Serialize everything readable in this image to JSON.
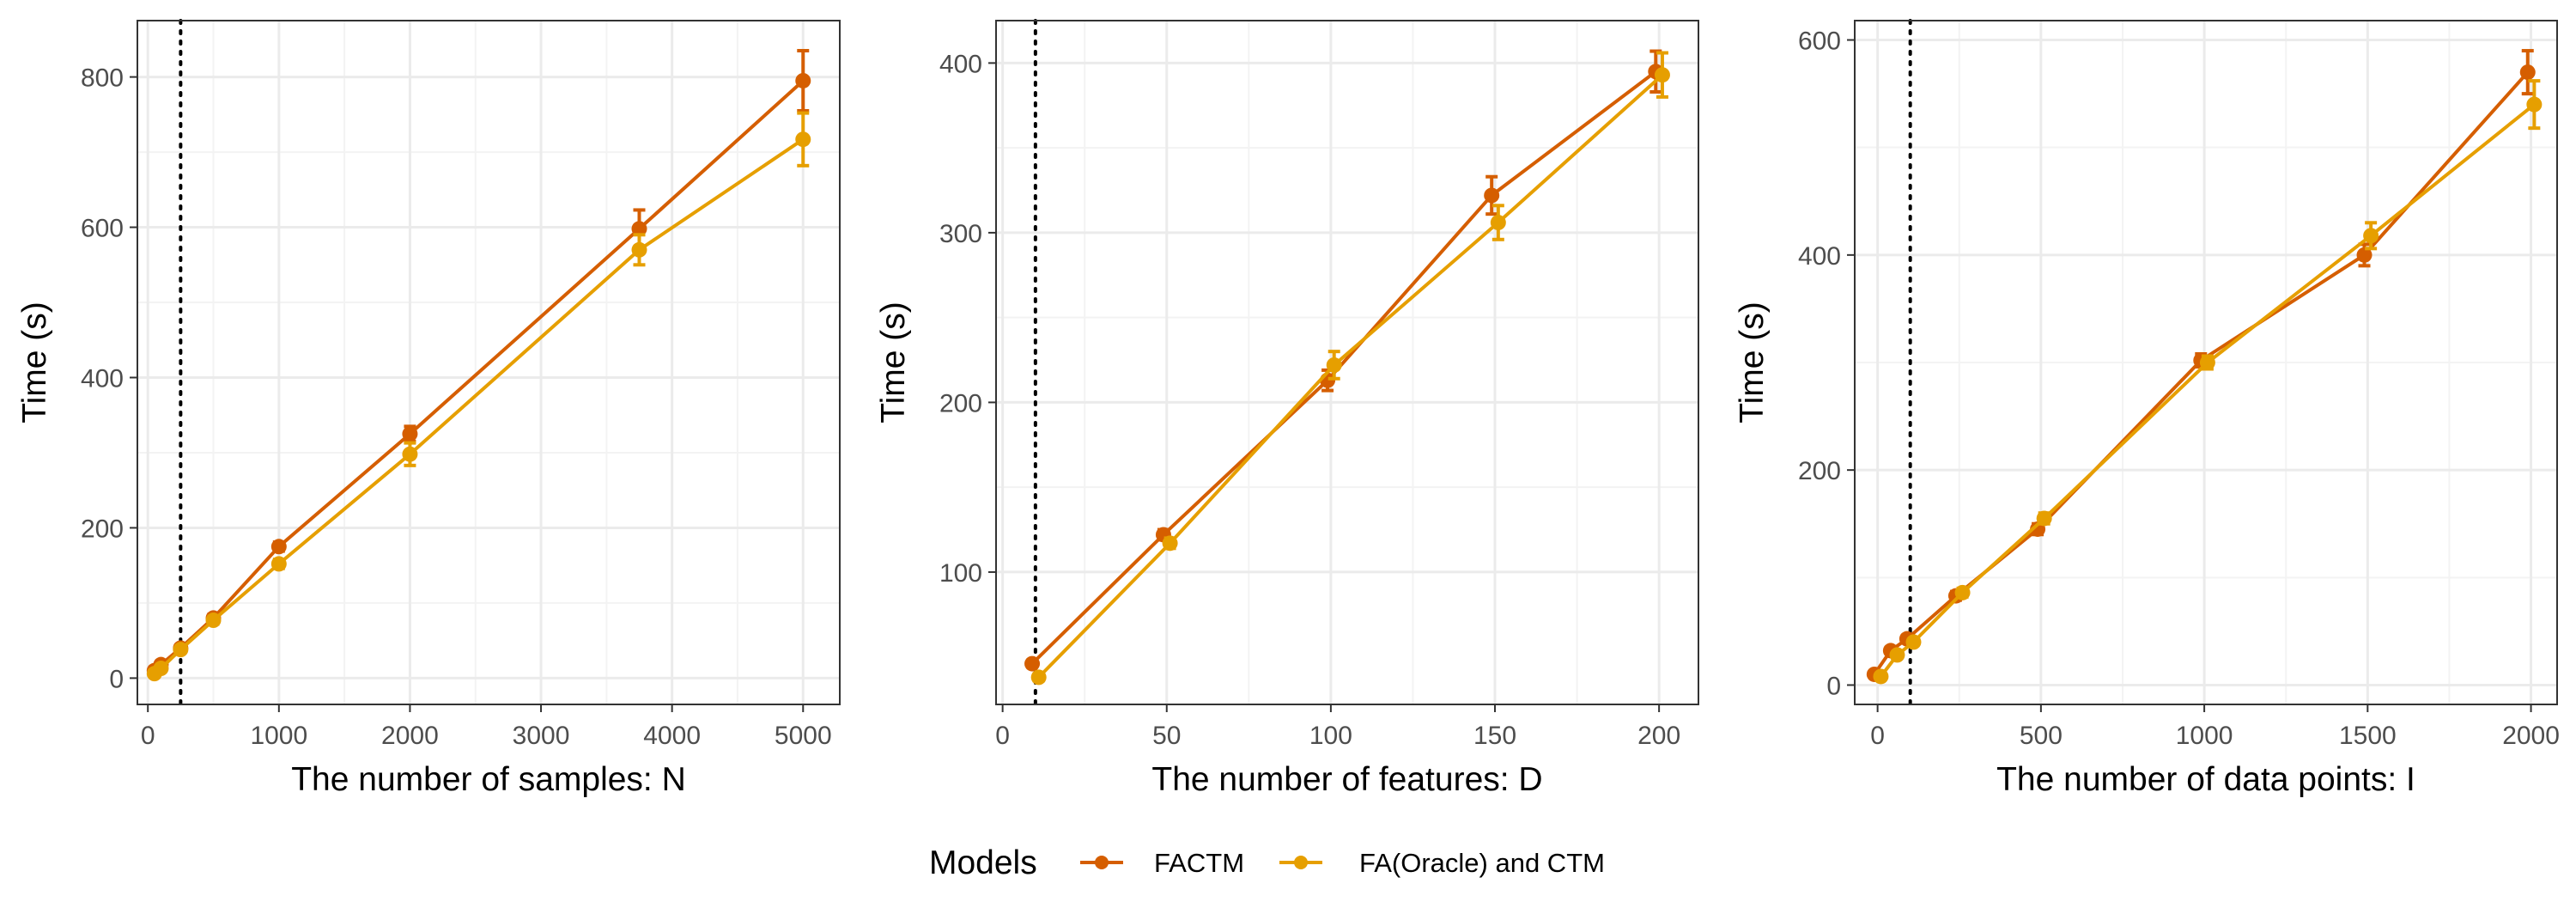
{
  "colors": {
    "FACTM": "#D55E00",
    "FA(Oracle) and CTM": "#E69F00",
    "grid_major": "#EBEBEB",
    "grid_minor": "#F3F3F3",
    "panel_border": "#333333",
    "reference_line": "#000000"
  },
  "legend": {
    "title": "Models",
    "position": "bottom",
    "entries": [
      "FACTM",
      "FA(Oracle) and CTM"
    ]
  },
  "chart_data": [
    {
      "type": "line",
      "xlabel": "The number of samples: N",
      "ylabel": "Time (s)",
      "xlim": [
        -80,
        5280
      ],
      "ylim": [
        -35,
        875
      ],
      "xticks": [
        0,
        1000,
        2000,
        3000,
        4000,
        5000
      ],
      "xtick_labels": [
        "0",
        "1000",
        "2000",
        "3000",
        "4000",
        "5000"
      ],
      "yticks": [
        0,
        200,
        400,
        600,
        800
      ],
      "ytick_labels": [
        "0",
        "200",
        "400",
        "600",
        "800"
      ],
      "reference_x": 250,
      "grid": true,
      "series": [
        {
          "name": "FACTM",
          "points": [
            {
              "x": 50,
              "y": 10,
              "err": 3
            },
            {
              "x": 100,
              "y": 18,
              "err": 3
            },
            {
              "x": 250,
              "y": 40,
              "err": 4
            },
            {
              "x": 500,
              "y": 80,
              "err": 5
            },
            {
              "x": 1000,
              "y": 175,
              "err": 6
            },
            {
              "x": 2000,
              "y": 325,
              "err": 10
            },
            {
              "x": 3750,
              "y": 598,
              "err": 25
            },
            {
              "x": 5000,
              "y": 795,
              "err": 40
            }
          ]
        },
        {
          "name": "FA(Oracle) and CTM",
          "points": [
            {
              "x": 50,
              "y": 6,
              "err": 3
            },
            {
              "x": 100,
              "y": 13,
              "err": 3
            },
            {
              "x": 250,
              "y": 38,
              "err": 4
            },
            {
              "x": 500,
              "y": 77,
              "err": 5
            },
            {
              "x": 1000,
              "y": 152,
              "err": 6
            },
            {
              "x": 2000,
              "y": 298,
              "err": 15
            },
            {
              "x": 3750,
              "y": 570,
              "err": 20
            },
            {
              "x": 5000,
              "y": 717,
              "err": 35
            }
          ]
        }
      ]
    },
    {
      "type": "line",
      "xlabel": "The number of features: D",
      "ylabel": "Time (s)",
      "xlim": [
        -2,
        212
      ],
      "ylim": [
        22,
        425
      ],
      "xticks": [
        0,
        50,
        100,
        150,
        200
      ],
      "xtick_labels": [
        "0",
        "50",
        "100",
        "150",
        "200"
      ],
      "yticks": [
        100,
        200,
        300,
        400
      ],
      "ytick_labels": [
        "100",
        "200",
        "300",
        "400"
      ],
      "reference_x": 10,
      "grid": true,
      "series": [
        {
          "name": "FACTM",
          "points": [
            {
              "x": 9,
              "y": 46,
              "err": 2
            },
            {
              "x": 49,
              "y": 122,
              "err": 3
            },
            {
              "x": 99,
              "y": 213,
              "err": 6
            },
            {
              "x": 149,
              "y": 322,
              "err": 11
            },
            {
              "x": 199,
              "y": 395,
              "err": 12
            }
          ]
        },
        {
          "name": "FA(Oracle) and CTM",
          "points": [
            {
              "x": 11,
              "y": 38,
              "err": 2
            },
            {
              "x": 51,
              "y": 117,
              "err": 3
            },
            {
              "x": 101,
              "y": 222,
              "err": 8
            },
            {
              "x": 151,
              "y": 306,
              "err": 10
            },
            {
              "x": 201,
              "y": 393,
              "err": 13
            }
          ]
        }
      ]
    },
    {
      "type": "line",
      "xlabel": "The number of data points: I",
      "ylabel": "Time (s)",
      "xlim": [
        -70,
        2080
      ],
      "ylim": [
        -18,
        618
      ],
      "xticks": [
        0,
        500,
        1000,
        1500,
        2000
      ],
      "xtick_labels": [
        "0",
        "500",
        "1000",
        "1500",
        "2000"
      ],
      "yticks": [
        0,
        200,
        400,
        600
      ],
      "ytick_labels": [
        "0",
        "200",
        "400",
        "600"
      ],
      "reference_x": 100,
      "grid": true,
      "series": [
        {
          "name": "FACTM",
          "points": [
            {
              "x": -10,
              "y": 10,
              "err": 2
            },
            {
              "x": 40,
              "y": 32,
              "err": 3
            },
            {
              "x": 90,
              "y": 43,
              "err": 3
            },
            {
              "x": 240,
              "y": 83,
              "err": 4
            },
            {
              "x": 490,
              "y": 145,
              "err": 5
            },
            {
              "x": 990,
              "y": 302,
              "err": 6
            },
            {
              "x": 1490,
              "y": 400,
              "err": 10
            },
            {
              "x": 1990,
              "y": 570,
              "err": 20
            }
          ]
        },
        {
          "name": "FA(Oracle) and CTM",
          "points": [
            {
              "x": 10,
              "y": 8,
              "err": 2
            },
            {
              "x": 60,
              "y": 28,
              "err": 3
            },
            {
              "x": 110,
              "y": 40,
              "err": 3
            },
            {
              "x": 260,
              "y": 86,
              "err": 4
            },
            {
              "x": 510,
              "y": 155,
              "err": 5
            },
            {
              "x": 1010,
              "y": 300,
              "err": 6
            },
            {
              "x": 1510,
              "y": 418,
              "err": 12
            },
            {
              "x": 2010,
              "y": 540,
              "err": 22
            }
          ]
        }
      ]
    }
  ]
}
